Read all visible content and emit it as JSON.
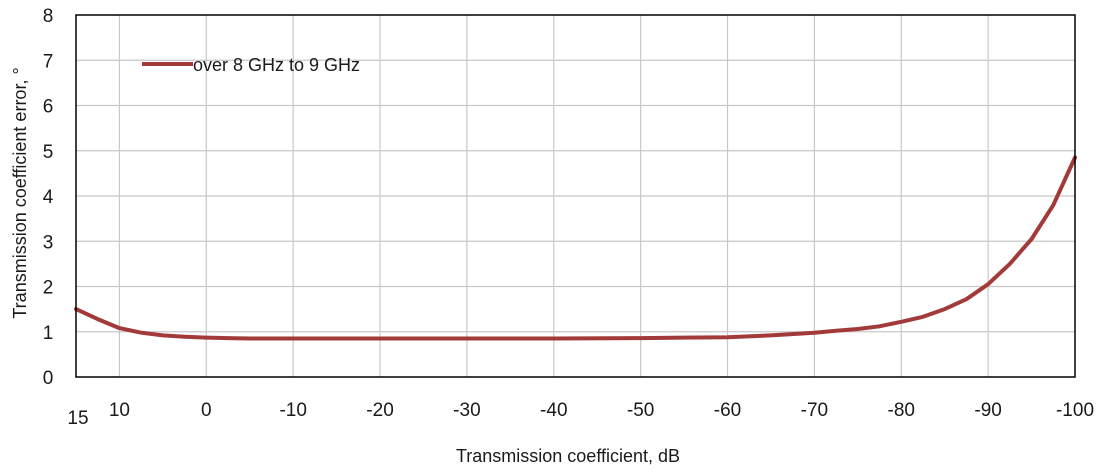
{
  "chart_data": {
    "type": "line",
    "title": "",
    "xlabel": "Transmission coefficient, dB",
    "ylabel": "Transmission coefficient error, °",
    "x_reversed": true,
    "xlim": [
      15,
      -100
    ],
    "ylim": [
      0,
      8
    ],
    "grid": true,
    "legend_position": "top-left",
    "x_ticks": [
      15,
      10,
      0,
      -10,
      -20,
      -30,
      -40,
      -50,
      -60,
      -70,
      -80,
      -90,
      -100
    ],
    "x_tick_labels": [
      "15",
      "10",
      "0",
      "-10",
      "-20",
      "-30",
      "-40",
      "-50",
      "-60",
      "-70",
      "-80",
      "-90",
      "-100"
    ],
    "y_ticks": [
      0,
      1,
      2,
      3,
      4,
      5,
      6,
      7,
      8
    ],
    "y_tick_labels": [
      "0",
      "1",
      "2",
      "3",
      "4",
      "5",
      "6",
      "7",
      "8"
    ],
    "series": [
      {
        "name": "over 8 GHz to 9 GHz",
        "color": "#a33a3a",
        "points": [
          [
            15,
            1.5
          ],
          [
            12.5,
            1.28
          ],
          [
            10,
            1.08
          ],
          [
            7.5,
            0.98
          ],
          [
            5,
            0.92
          ],
          [
            2.5,
            0.89
          ],
          [
            0,
            0.87
          ],
          [
            -2.5,
            0.86
          ],
          [
            -5,
            0.85
          ],
          [
            -10,
            0.85
          ],
          [
            -20,
            0.85
          ],
          [
            -30,
            0.85
          ],
          [
            -40,
            0.85
          ],
          [
            -50,
            0.86
          ],
          [
            -55,
            0.87
          ],
          [
            -60,
            0.88
          ],
          [
            -65,
            0.92
          ],
          [
            -70,
            0.98
          ],
          [
            -72.5,
            1.02
          ],
          [
            -75,
            1.06
          ],
          [
            -77.5,
            1.12
          ],
          [
            -80,
            1.22
          ],
          [
            -82.5,
            1.33
          ],
          [
            -85,
            1.5
          ],
          [
            -87.5,
            1.72
          ],
          [
            -90,
            2.05
          ],
          [
            -92.5,
            2.5
          ],
          [
            -95,
            3.05
          ],
          [
            -97.5,
            3.8
          ],
          [
            -100,
            4.85
          ]
        ]
      }
    ]
  }
}
